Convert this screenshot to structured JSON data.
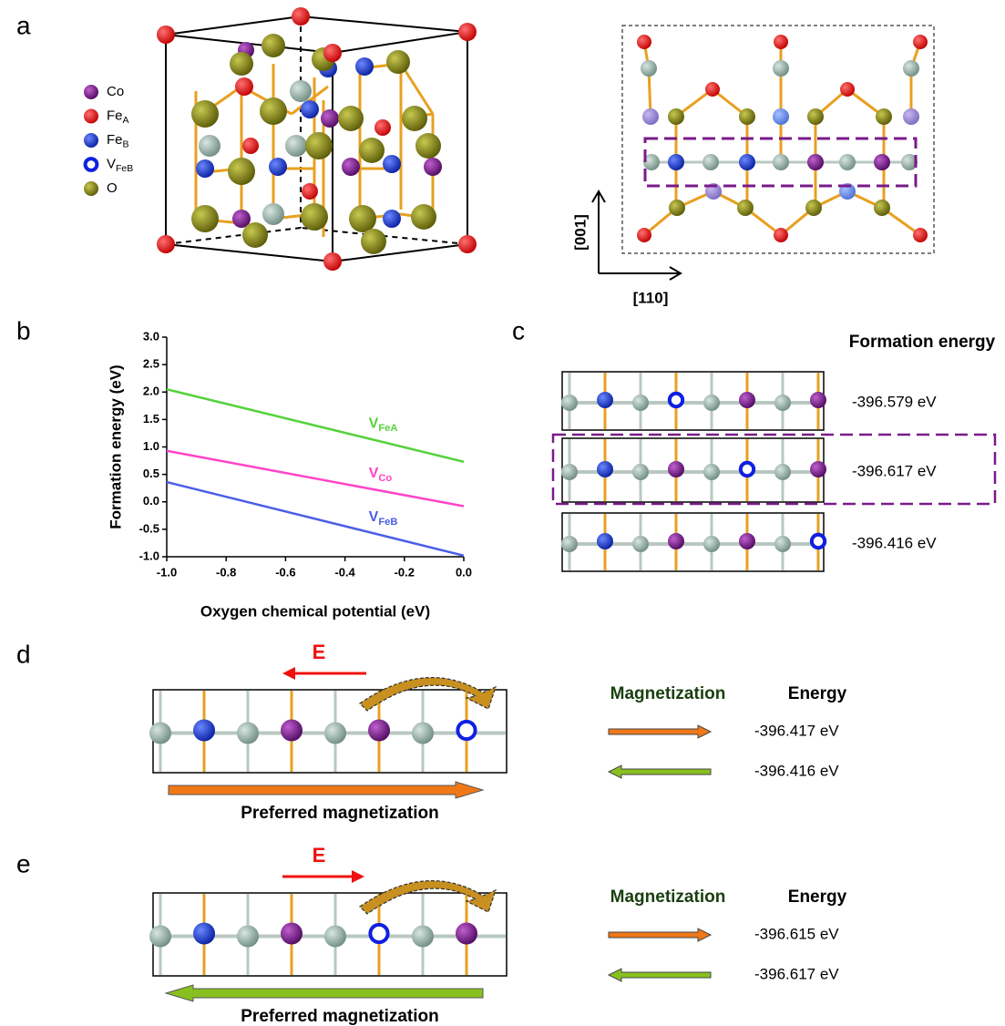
{
  "panel_labels": [
    "a",
    "b",
    "c",
    "d",
    "e"
  ],
  "legend": [
    {
      "label": "Co"
    },
    {
      "label": "Fe",
      "sub": "A"
    },
    {
      "label": "Fe",
      "sub": "B"
    },
    {
      "label": "V",
      "sub": "FeB"
    },
    {
      "label": "O"
    }
  ],
  "directions": {
    "vertical": "[001]",
    "horizontal": "[110]"
  },
  "chart_data": {
    "type": "line",
    "x_label": "Oxygen chemical potential (eV)",
    "y_label": "Formation energy (eV)",
    "x": [
      -1.0,
      0.0
    ],
    "series": [
      {
        "name": "V",
        "sub": "FeA",
        "color": "#55d23c",
        "values": [
          2.05,
          0.73
        ]
      },
      {
        "name": "V",
        "sub": "Co",
        "color": "#ff44c8",
        "values": [
          0.93,
          -0.08
        ]
      },
      {
        "name": "V",
        "sub": "FeB",
        "color": "#4a5ee8",
        "values": [
          0.36,
          -0.98
        ]
      }
    ],
    "xlim": [
      -1.0,
      0.0
    ],
    "xticks": [
      {
        "value": -1.0,
        "label": "-1.0"
      },
      -0.8,
      -0.6,
      -0.4,
      -0.2,
      {
        "value": 0.0,
        "label": "0.0"
      }
    ],
    "ylim": [
      -1.0,
      3.0
    ],
    "yticks": [
      {
        "value": 3.0,
        "label": "3.0"
      },
      2.5,
      {
        "value": 2.0,
        "label": "2.0"
      },
      1.5,
      {
        "value": 1.0,
        "label": "1.0"
      },
      0.5,
      {
        "value": 0.0,
        "label": "0.0"
      },
      -0.5,
      {
        "value": -1.0,
        "label": "-1.0"
      }
    ],
    "grid": false
  },
  "formation": {
    "title": "Formation energy",
    "energies": [
      "-396.579 eV",
      "-396.617 eV",
      "-396.416 eV"
    ]
  },
  "d": {
    "field": "E",
    "caption": "Preferred magnetization",
    "headers": [
      "Magnetization",
      "Energy"
    ],
    "energies": [
      "-396.417 eV",
      "-396.416 eV"
    ]
  },
  "e": {
    "field": "E",
    "caption": "Preferred magnetization",
    "headers": [
      "Magnetization",
      "Energy"
    ],
    "energies": [
      "-396.615 eV",
      "-396.617 eV"
    ]
  }
}
